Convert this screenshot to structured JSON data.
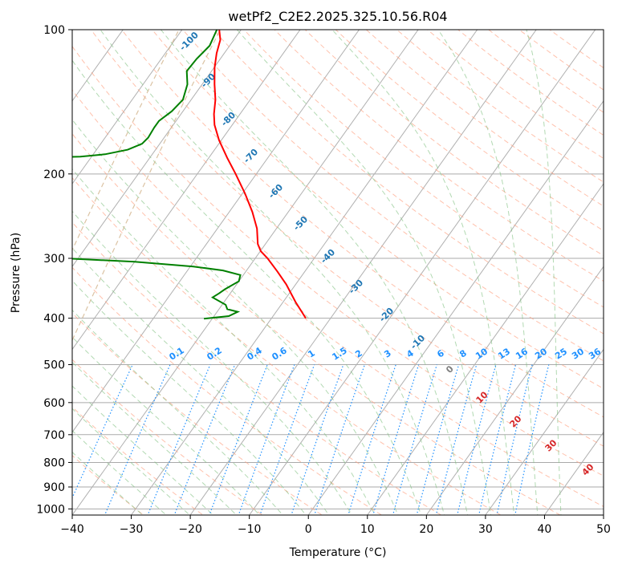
{
  "chart_data": {
    "type": "skew-t",
    "title": "wetPf2_C2E2.2025.325.10.56.R04",
    "xlabel": "Temperature (°C)",
    "ylabel": "Pressure (hPa)",
    "xlim": [
      -40,
      50
    ],
    "ylim": [
      1030,
      100
    ],
    "y_scale": "log",
    "grid": true,
    "x_ticks": [
      -40,
      -30,
      -20,
      -10,
      0,
      10,
      20,
      30,
      40,
      50
    ],
    "y_ticks": [
      1000,
      900,
      800,
      700,
      600,
      500,
      400,
      300,
      200,
      100
    ],
    "series": [
      {
        "color": "#ff0000",
        "points": [
          {
            "p": 400,
            "t": -24.2
          },
          {
            "p": 370,
            "t": -27.9
          },
          {
            "p": 340,
            "t": -31.6
          },
          {
            "p": 320,
            "t": -34.6
          },
          {
            "p": 300,
            "t": -37.9
          },
          {
            "p": 290,
            "t": -39.9
          },
          {
            "p": 280,
            "t": -41.3
          },
          {
            "p": 260,
            "t": -43.3
          },
          {
            "p": 240,
            "t": -46.1
          },
          {
            "p": 220,
            "t": -49.5
          },
          {
            "p": 200,
            "t": -53.5
          },
          {
            "p": 185,
            "t": -56.9
          },
          {
            "p": 170,
            "t": -60.4
          },
          {
            "p": 158,
            "t": -63.0
          },
          {
            "p": 150,
            "t": -64.4
          },
          {
            "p": 140,
            "t": -65.9
          },
          {
            "p": 130,
            "t": -67.9
          },
          {
            "p": 120,
            "t": -69.9
          },
          {
            "p": 112,
            "t": -71.3
          },
          {
            "p": 105,
            "t": -72.3
          },
          {
            "p": 100,
            "t": -73.7
          }
        ]
      },
      {
        "color": "#008000",
        "points": [
          {
            "p": 401,
            "t": -41.4
          },
          {
            "p": 396,
            "t": -37.5
          },
          {
            "p": 388,
            "t": -36.5
          },
          {
            "p": 383,
            "t": -38.6
          },
          {
            "p": 375,
            "t": -39.4
          },
          {
            "p": 362,
            "t": -42.5
          },
          {
            "p": 355,
            "t": -41.9
          },
          {
            "p": 348,
            "t": -41.4
          },
          {
            "p": 335,
            "t": -40.0
          },
          {
            "p": 325,
            "t": -40.5
          },
          {
            "p": 318,
            "t": -44.0
          },
          {
            "p": 312,
            "t": -49.5
          },
          {
            "p": 305,
            "t": -60.0
          },
          {
            "p": 299,
            "t": -75.0
          },
          {
            "p": 293,
            "t": -90.0
          },
          {
            "p": 290,
            "t": -96.3
          },
          {
            "p": 280,
            "t": -100.3
          },
          {
            "p": 268,
            "t": -103.3
          },
          {
            "p": 255,
            "t": -103.3
          },
          {
            "p": 240,
            "t": -100.9
          },
          {
            "p": 220,
            "t": -97.0
          },
          {
            "p": 200,
            "t": -94.2
          },
          {
            "p": 186,
            "t": -92.4
          },
          {
            "p": 184,
            "t": -81.9
          },
          {
            "p": 182,
            "t": -78.0
          },
          {
            "p": 178,
            "t": -74.7
          },
          {
            "p": 173,
            "t": -73.0
          },
          {
            "p": 168,
            "t": -72.7
          },
          {
            "p": 160,
            "t": -72.9
          },
          {
            "p": 155,
            "t": -72.9
          },
          {
            "p": 148,
            "t": -71.9
          },
          {
            "p": 140,
            "t": -71.4
          },
          {
            "p": 130,
            "t": -72.5
          },
          {
            "p": 122,
            "t": -74.2
          },
          {
            "p": 115,
            "t": -74.0
          },
          {
            "p": 108,
            "t": -73.4
          },
          {
            "p": 100,
            "t": -74.1
          }
        ]
      }
    ],
    "isotherm_labels": [
      -100,
      -90,
      -80,
      -70,
      -60,
      -50,
      -40,
      -30,
      -20,
      -10
    ],
    "isotherm_label_color": "#1f77b4",
    "mixing_ratio_labels": [
      "0.1",
      "0.2",
      "0.4",
      "0.6",
      "1",
      "1.5",
      "2",
      "3",
      "4",
      "6",
      "8",
      "10",
      "13",
      "16",
      "20",
      "25",
      "30",
      "36"
    ],
    "mixing_ratio_color": "#1e90ff",
    "moist_adiabat_labels": [
      "0",
      "10",
      "20",
      "30",
      "40"
    ],
    "moist_adiabat_label_colors": [
      "#808080",
      "#d62728",
      "#d62728",
      "#d62728",
      "#d62728"
    ]
  }
}
